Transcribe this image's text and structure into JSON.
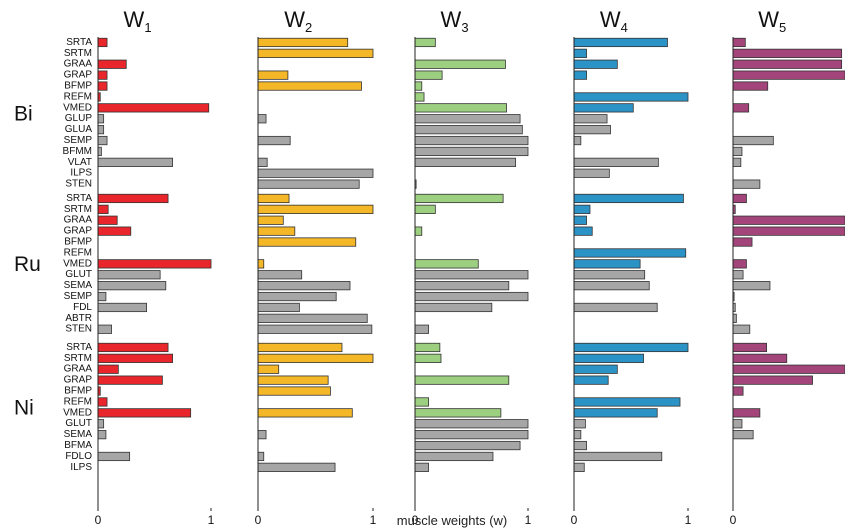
{
  "chart_data": {
    "type": "bar",
    "orientation": "horizontal",
    "xlabel": "muscle weights (w)",
    "xlim": [
      0,
      1
    ],
    "xticks": [
      "0",
      "1"
    ],
    "colors": {
      "W1": "#e8262b",
      "W2": "#f4b728",
      "W3": "#9ccf7f",
      "W4": "#2b93c6",
      "W5": "#a3457a",
      "other": "#a6a6a6"
    },
    "columns": [
      {
        "name": "W",
        "sub": "1",
        "key": "W1"
      },
      {
        "name": "W",
        "sub": "2",
        "key": "W2"
      },
      {
        "name": "W",
        "sub": "3",
        "key": "W3"
      },
      {
        "name": "W",
        "sub": "4",
        "key": "W4"
      },
      {
        "name": "W",
        "sub": "5",
        "key": "W5"
      }
    ],
    "groups": [
      {
        "name": "Bi",
        "muscles": [
          "SRTA",
          "SRTM",
          "GRAA",
          "GRAP",
          "BFMP",
          "REFM",
          "VMED",
          "GLUP",
          "GLUA",
          "SEMP",
          "BFMM",
          "VLAT",
          "ILPS",
          "STEN"
        ],
        "synergy_muscle_count": 7,
        "weights": {
          "W1": [
            0.08,
            0.0,
            0.25,
            0.08,
            0.08,
            0.02,
            0.98,
            0.05,
            0.05,
            0.08,
            0.03,
            0.66,
            0.0,
            0.0
          ],
          "W2": [
            0.78,
            1.0,
            0.0,
            0.26,
            0.9,
            0.0,
            0.0,
            0.07,
            0.0,
            0.28,
            0.0,
            0.08,
            1.0,
            0.88
          ],
          "W3": [
            0.18,
            0.0,
            0.8,
            0.24,
            0.06,
            0.08,
            0.81,
            0.93,
            0.95,
            1.0,
            1.0,
            0.89,
            0.0,
            0.01
          ],
          "W4": [
            0.82,
            0.11,
            0.38,
            0.11,
            0.0,
            1.0,
            0.52,
            0.29,
            0.32,
            0.06,
            0.0,
            0.74,
            0.31,
            0.0
          ],
          "W5": [
            0.11,
            0.97,
            0.97,
            1.0,
            0.31,
            0.0,
            0.14,
            0.0,
            0.0,
            0.36,
            0.08,
            0.07,
            0.0,
            0.24
          ]
        }
      },
      {
        "name": "Ru",
        "muscles": [
          "SRTA",
          "SRTM",
          "GRAA",
          "GRAP",
          "BFMP",
          "REFM",
          "VMED",
          "GLUT",
          "SEMA",
          "SEMP",
          "FDL",
          "ABTR",
          "STEN"
        ],
        "synergy_muscle_count": 7,
        "weights": {
          "W1": [
            0.62,
            0.09,
            0.17,
            0.29,
            0.0,
            0.0,
            1.0,
            0.55,
            0.6,
            0.07,
            0.43,
            0.0,
            0.12
          ],
          "W2": [
            0.27,
            1.0,
            0.22,
            0.32,
            0.85,
            0.0,
            0.05,
            0.38,
            0.8,
            0.68,
            0.36,
            0.95,
            0.99
          ],
          "W3": [
            0.78,
            0.18,
            0.0,
            0.06,
            0.0,
            0.0,
            0.56,
            1.0,
            0.83,
            1.0,
            0.68,
            0.0,
            0.12
          ],
          "W4": [
            0.96,
            0.14,
            0.11,
            0.16,
            0.0,
            0.98,
            0.58,
            0.62,
            0.66,
            0.0,
            0.73,
            0.0,
            0.0
          ],
          "W5": [
            0.12,
            0.02,
            1.0,
            1.0,
            0.17,
            0.0,
            0.12,
            0.09,
            0.33,
            0.01,
            0.02,
            0.03,
            0.15
          ]
        }
      },
      {
        "name": "Ni",
        "muscles": [
          "SRTA",
          "SRTM",
          "GRAA",
          "GRAP",
          "BFMP",
          "REFM",
          "VMED",
          "GLUT",
          "SEMA",
          "BFMA",
          "FDLO",
          "ILPS"
        ],
        "synergy_muscle_count": 7,
        "weights": {
          "W1": [
            0.62,
            0.66,
            0.18,
            0.57,
            0.02,
            0.08,
            0.82,
            0.05,
            0.07,
            0.0,
            0.28,
            0.0
          ],
          "W2": [
            0.73,
            1.0,
            0.18,
            0.61,
            0.63,
            0.0,
            0.82,
            0.0,
            0.07,
            0.0,
            0.05,
            0.67
          ],
          "W3": [
            0.22,
            0.23,
            0.0,
            0.83,
            0.0,
            0.12,
            0.76,
            1.0,
            1.0,
            0.93,
            0.69,
            0.12
          ],
          "W4": [
            1.0,
            0.61,
            0.38,
            0.3,
            0.0,
            0.93,
            0.73,
            0.1,
            0.06,
            0.11,
            0.77,
            0.09
          ],
          "W5": [
            0.3,
            0.48,
            1.0,
            0.71,
            0.09,
            0.0,
            0.24,
            0.08,
            0.18,
            0.0,
            0.0,
            0.0
          ]
        }
      }
    ]
  }
}
